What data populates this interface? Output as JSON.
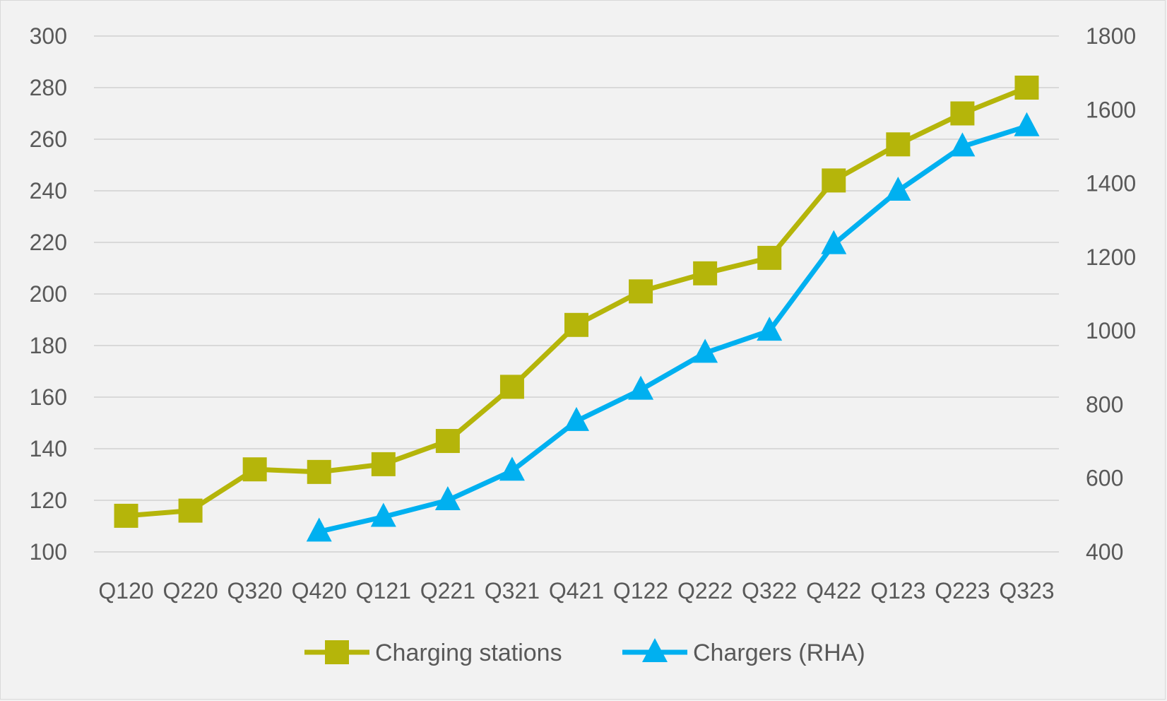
{
  "colors": {
    "background": "#f2f2f2",
    "gridline": "#d9d9d9",
    "text": "#595959",
    "series_stations": "#b5b50a",
    "series_chargers": "#00b0f0"
  },
  "chart_data": {
    "type": "line",
    "title": "",
    "xlabel": "",
    "ylabel": "",
    "y2label": "",
    "grid": true,
    "legend_position": "bottom",
    "categories": [
      "Q120",
      "Q220",
      "Q320",
      "Q420",
      "Q121",
      "Q221",
      "Q321",
      "Q421",
      "Q122",
      "Q222",
      "Q322",
      "Q422",
      "Q123",
      "Q223",
      "Q323"
    ],
    "y_axis": {
      "min": 100,
      "max": 300,
      "step": 20,
      "ticks": [
        "100",
        "120",
        "140",
        "160",
        "180",
        "200",
        "220",
        "240",
        "260",
        "280",
        "300"
      ]
    },
    "y2_axis": {
      "min": 400,
      "max": 1800,
      "step": 200,
      "ticks": [
        "400",
        "600",
        "800",
        "1000",
        "1200",
        "1400",
        "1600",
        "1800"
      ]
    },
    "series": [
      {
        "name": "Charging stations",
        "axis": "left",
        "marker": "square",
        "color": "#b5b50a",
        "values": [
          114,
          116,
          132,
          131,
          134,
          143,
          164,
          188,
          201,
          208,
          214,
          244,
          258,
          270,
          280
        ]
      },
      {
        "name": "Chargers (RHA)",
        "axis": "right",
        "marker": "triangle",
        "color": "#00b0f0",
        "values": [
          null,
          null,
          null,
          455,
          495,
          540,
          620,
          755,
          840,
          940,
          1000,
          1235,
          1380,
          1500,
          1555
        ]
      }
    ]
  }
}
